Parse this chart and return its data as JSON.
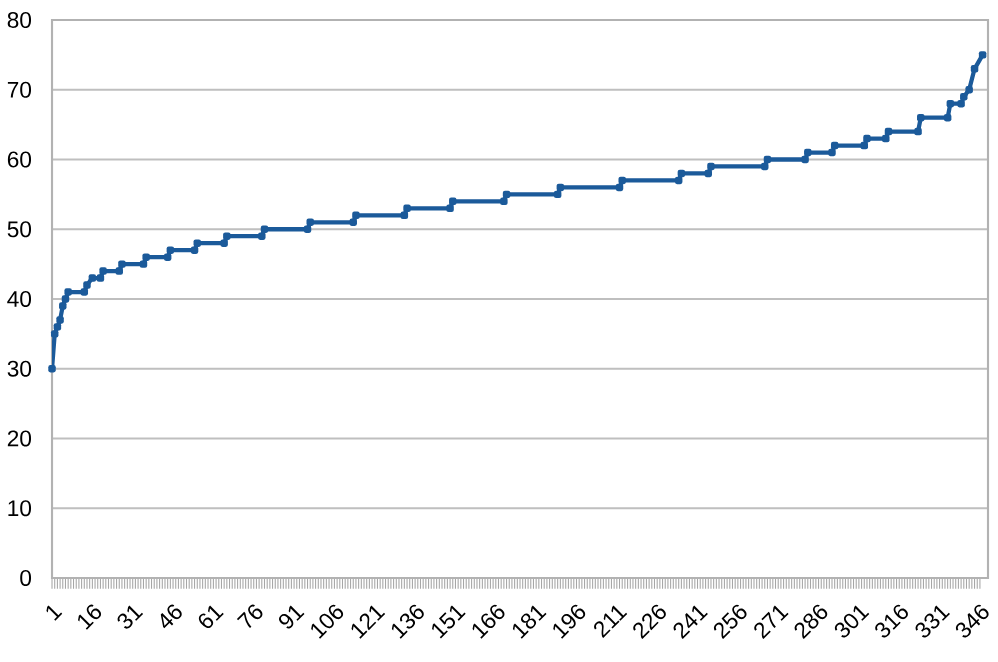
{
  "chart_data": {
    "type": "line",
    "xlim": [
      1,
      349
    ],
    "ylim": [
      0,
      80
    ],
    "xticks": [
      1,
      16,
      31,
      46,
      61,
      76,
      91,
      106,
      121,
      136,
      151,
      166,
      181,
      196,
      211,
      226,
      241,
      256,
      271,
      286,
      301,
      316,
      331,
      346
    ],
    "yticks": [
      0,
      10,
      20,
      30,
      40,
      50,
      60,
      70,
      80
    ],
    "grid": "y",
    "marker": "square",
    "line_style": "solid",
    "series": [
      {
        "color": "#1b5a9a",
        "x": [
          1,
          2,
          3,
          4,
          5,
          6,
          7,
          13,
          14,
          16,
          19,
          20,
          26,
          27,
          35,
          36,
          44,
          45,
          54,
          55,
          65,
          66,
          79,
          80,
          96,
          97,
          113,
          114,
          132,
          133,
          149,
          150,
          169,
          170,
          189,
          190,
          212,
          213,
          234,
          235,
          245,
          246,
          266,
          267,
          281,
          282,
          291,
          292,
          303,
          304,
          311,
          312,
          323,
          324,
          334,
          335,
          339,
          340,
          342,
          344,
          347
        ],
        "values": [
          30,
          35,
          36,
          37,
          39,
          40,
          41,
          41,
          42,
          43,
          43,
          44,
          44,
          45,
          45,
          46,
          46,
          47,
          47,
          48,
          48,
          49,
          49,
          50,
          50,
          51,
          51,
          52,
          52,
          53,
          53,
          54,
          54,
          55,
          55,
          56,
          56,
          57,
          57,
          58,
          58,
          59,
          59,
          60,
          60,
          61,
          61,
          62,
          62,
          63,
          63,
          64,
          64,
          66,
          66,
          68,
          68,
          69,
          70,
          73,
          75
        ]
      }
    ]
  }
}
